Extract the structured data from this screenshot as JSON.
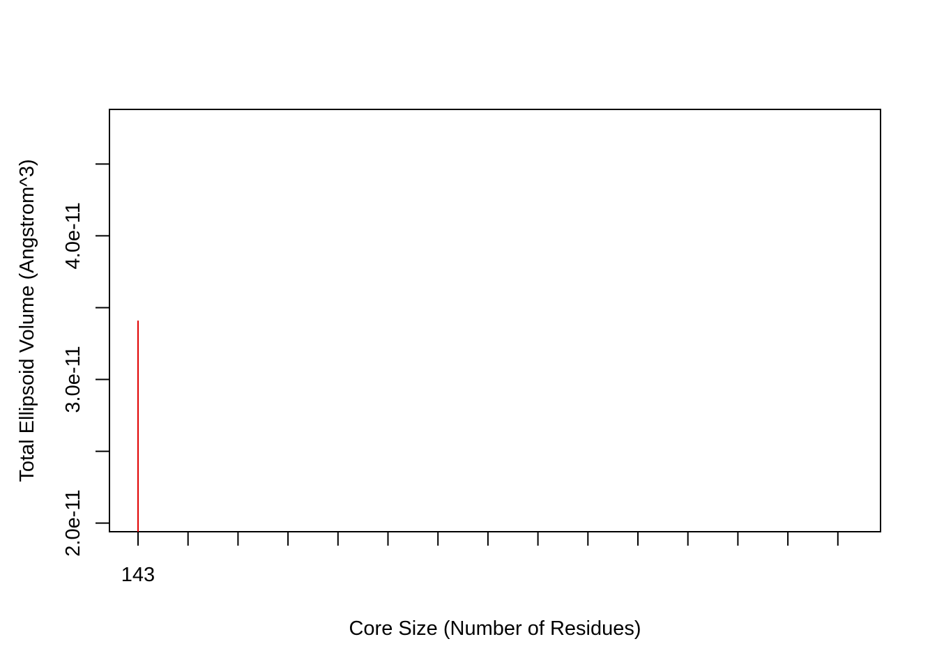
{
  "chart_data": {
    "type": "bar",
    "title": "",
    "xlabel": "Core Size (Number of Residues)",
    "ylabel": "Total Ellipsoid Volume (Angstrom^3)",
    "x_tick_count": 15,
    "x_tick_labels": [
      "143"
    ],
    "ylim": [
      1.94e-11,
      4.88e-11
    ],
    "y_ticks": [
      2e-11,
      2.5e-11,
      3e-11,
      3.5e-11,
      4e-11,
      4.5e-11
    ],
    "y_tick_labels": [
      "2.0e-11",
      "",
      "3.0e-11",
      "",
      "4.0e-11",
      ""
    ],
    "series": [
      {
        "categories": [
          "143"
        ],
        "values": [
          3.41e-11
        ],
        "color": "#e00000"
      }
    ],
    "grid": false,
    "legend": "none"
  }
}
